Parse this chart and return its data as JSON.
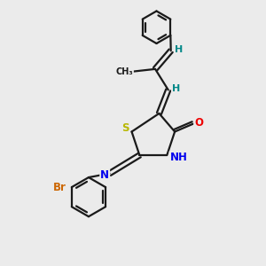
{
  "background_color": "#ebebeb",
  "line_color": "#1a1a1a",
  "bond_width": 1.6,
  "atom_colors": {
    "S": "#b8b800",
    "N": "#0000ee",
    "O": "#ee0000",
    "Br": "#cc6600",
    "H": "#008888",
    "C": "#1a1a1a"
  },
  "font_size": 8.5
}
